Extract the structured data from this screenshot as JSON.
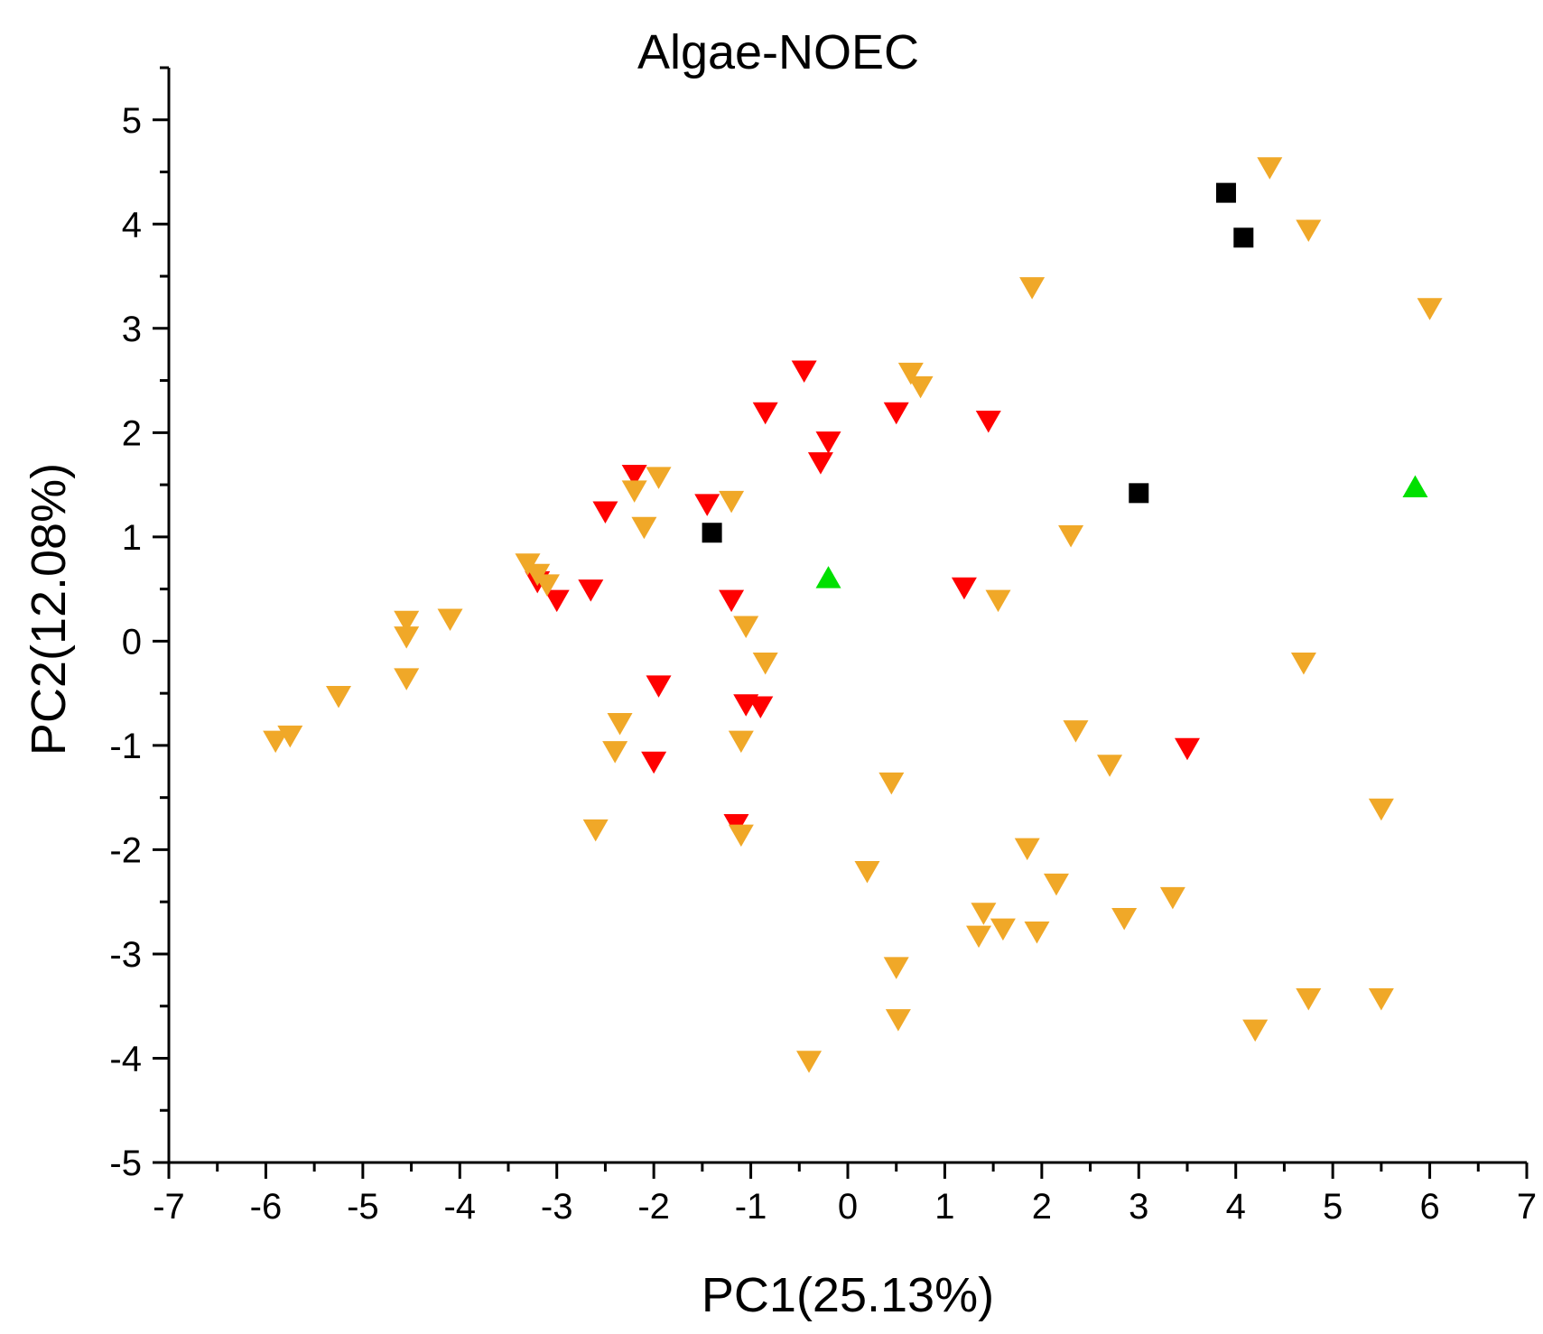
{
  "chart_data": {
    "type": "scatter",
    "title": "Algae-NOEC",
    "xlabel": "PC1(25.13%)",
    "ylabel": "PC2(12.08%)",
    "xlim": [
      -7,
      7
    ],
    "ylim": [
      -5,
      5.5
    ],
    "xticks": [
      -7,
      -6,
      -5,
      -4,
      -3,
      -2,
      -1,
      0,
      1,
      2,
      3,
      4,
      5,
      6,
      7
    ],
    "yticks": [
      -5,
      -4,
      -3,
      -2,
      -1,
      0,
      1,
      2,
      3,
      4,
      5
    ],
    "grid": false,
    "legend": "none",
    "series": [
      {
        "name": "black-square",
        "marker": "square",
        "color": "#000000",
        "points": [
          [
            3.9,
            4.3
          ],
          [
            4.08,
            3.87
          ],
          [
            3.0,
            1.42
          ],
          [
            -1.4,
            1.04
          ]
        ]
      },
      {
        "name": "green-triangle",
        "marker": "triangle-up",
        "color": "#00e000",
        "points": [
          [
            5.85,
            1.47
          ],
          [
            -0.2,
            0.6
          ]
        ]
      },
      {
        "name": "red-triangle",
        "marker": "triangle-down",
        "color": "#ff0000",
        "points": [
          [
            -0.45,
            2.6
          ],
          [
            -0.85,
            2.2
          ],
          [
            0.5,
            2.2
          ],
          [
            1.45,
            2.12
          ],
          [
            -0.2,
            1.92
          ],
          [
            -0.28,
            1.72
          ],
          [
            -2.2,
            1.6
          ],
          [
            -1.45,
            1.32
          ],
          [
            -2.5,
            1.25
          ],
          [
            -3.2,
            0.58
          ],
          [
            -3.0,
            0.4
          ],
          [
            -2.65,
            0.5
          ],
          [
            -1.2,
            0.4
          ],
          [
            1.2,
            0.52
          ],
          [
            -1.95,
            -0.42
          ],
          [
            -1.05,
            -0.6
          ],
          [
            -0.9,
            -0.62
          ],
          [
            -2.0,
            -1.15
          ],
          [
            3.5,
            -1.02
          ],
          [
            -1.15,
            -1.75
          ]
        ]
      },
      {
        "name": "orange-triangle",
        "marker": "triangle-down",
        "color": "#f0a828",
        "points": [
          [
            4.35,
            4.55
          ],
          [
            4.75,
            3.95
          ],
          [
            6.0,
            3.2
          ],
          [
            1.9,
            3.4
          ],
          [
            0.65,
            2.58
          ],
          [
            0.75,
            2.45
          ],
          [
            -1.95,
            1.58
          ],
          [
            -2.2,
            1.45
          ],
          [
            -1.2,
            1.35
          ],
          [
            -2.1,
            1.1
          ],
          [
            2.3,
            1.02
          ],
          [
            -3.3,
            0.75
          ],
          [
            -3.2,
            0.65
          ],
          [
            -3.1,
            0.55
          ],
          [
            -4.55,
            0.2
          ],
          [
            -4.1,
            0.22
          ],
          [
            -4.55,
            0.05
          ],
          [
            -1.05,
            0.15
          ],
          [
            1.55,
            0.4
          ],
          [
            -0.85,
            -0.2
          ],
          [
            4.7,
            -0.2
          ],
          [
            -4.55,
            -0.35
          ],
          [
            -5.25,
            -0.52
          ],
          [
            -2.35,
            -0.78
          ],
          [
            -5.9,
            -0.95
          ],
          [
            -5.75,
            -0.9
          ],
          [
            -2.4,
            -1.05
          ],
          [
            -1.1,
            -0.95
          ],
          [
            2.35,
            -0.85
          ],
          [
            2.7,
            -1.18
          ],
          [
            0.45,
            -1.35
          ],
          [
            5.5,
            -1.6
          ],
          [
            -2.6,
            -1.8
          ],
          [
            -1.1,
            -1.85
          ],
          [
            1.85,
            -1.98
          ],
          [
            0.2,
            -2.2
          ],
          [
            2.15,
            -2.32
          ],
          [
            3.35,
            -2.45
          ],
          [
            1.4,
            -2.6
          ],
          [
            1.6,
            -2.75
          ],
          [
            1.35,
            -2.82
          ],
          [
            1.95,
            -2.78
          ],
          [
            2.85,
            -2.65
          ],
          [
            0.5,
            -3.12
          ],
          [
            4.75,
            -3.42
          ],
          [
            5.5,
            -3.42
          ],
          [
            0.52,
            -3.62
          ],
          [
            4.2,
            -3.72
          ],
          [
            -0.4,
            -4.02
          ]
        ]
      }
    ]
  }
}
